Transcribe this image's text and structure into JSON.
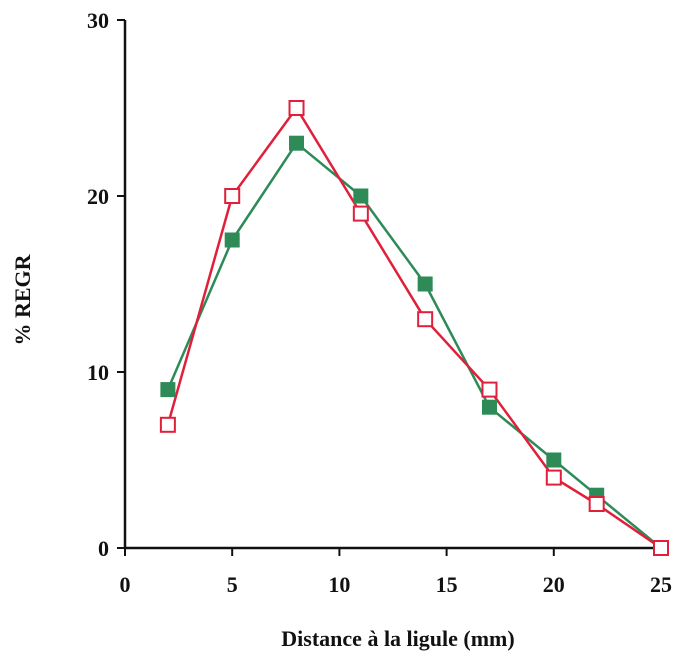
{
  "chart_data": {
    "type": "line",
    "xlabel": "Distance à la ligule (mm)",
    "ylabel": "% REGR",
    "xlim": [
      0,
      25
    ],
    "ylim": [
      0,
      30
    ],
    "x_ticks": [
      "0",
      "5",
      "10",
      "15",
      "20",
      "25"
    ],
    "y_ticks": [
      "0",
      "10",
      "20",
      "30"
    ],
    "grid": false,
    "series": [
      {
        "color": "#2e8b57",
        "marker": "filled-square",
        "x": [
          2,
          5,
          8,
          11,
          14,
          17,
          20,
          22,
          25
        ],
        "y": [
          9,
          17.5,
          23,
          20,
          15,
          8,
          5,
          3,
          0
        ]
      },
      {
        "color": "#e0203a",
        "marker": "open-square",
        "x": [
          2,
          5,
          8,
          11,
          14,
          17,
          20,
          22,
          25
        ],
        "y": [
          7,
          20,
          25,
          19,
          13,
          9,
          4,
          2.5,
          0
        ]
      }
    ]
  }
}
